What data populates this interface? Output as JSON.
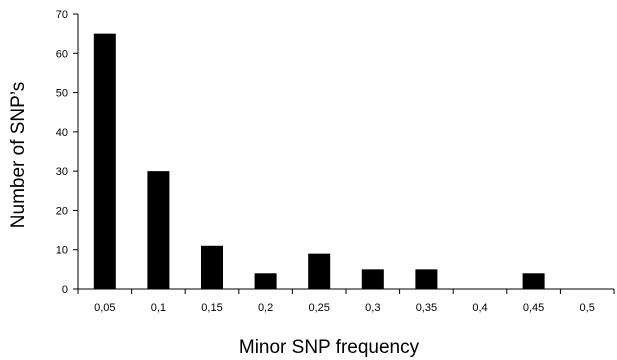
{
  "chart_data": {
    "type": "bar",
    "title": "",
    "xlabel": "Minor SNP frequency",
    "ylabel": "Number of SNP’s",
    "categories": [
      "0,05",
      "0,1",
      "0,15",
      "0,2",
      "0,25",
      "0,3",
      "0,35",
      "0,4",
      "0,45",
      "0,5"
    ],
    "values": [
      65,
      30,
      11,
      4,
      9,
      5,
      5,
      0,
      4,
      0
    ],
    "ylim": [
      0,
      70
    ],
    "yticks": [
      0,
      10,
      20,
      30,
      40,
      50,
      60,
      70
    ],
    "grid": false,
    "legend": "none",
    "bar_color": "#000000"
  }
}
